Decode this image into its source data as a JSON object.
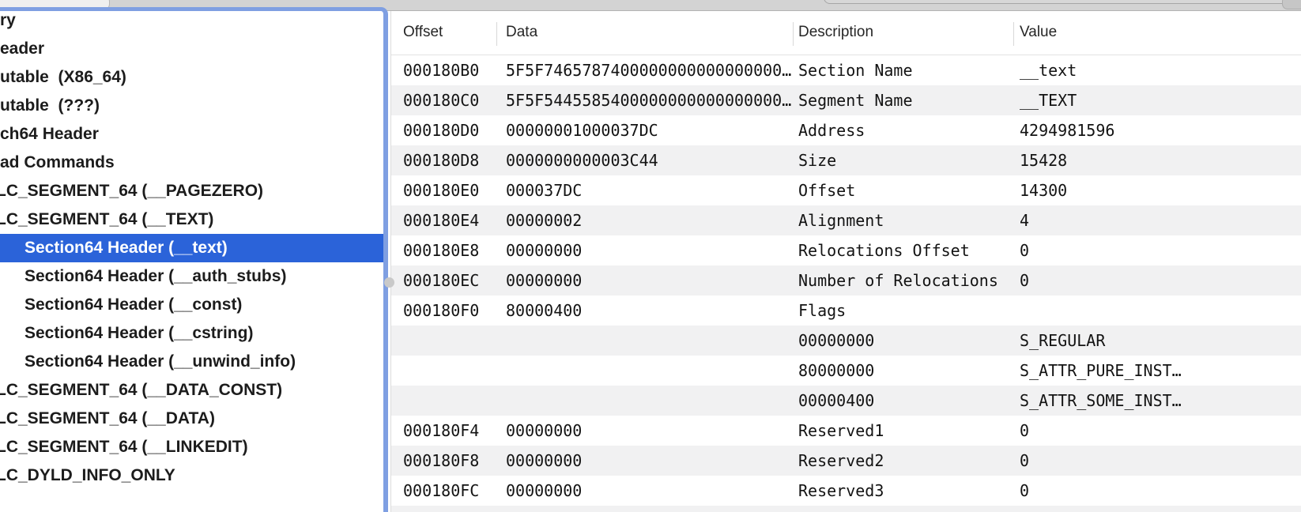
{
  "colors": {
    "selection_blue": "#2b63d9",
    "focus_ring_blue": "#7f9fe2",
    "row_stripe_gray": "#f1f1f2"
  },
  "sidebar": {
    "items": [
      {
        "label": "ry",
        "indent": 0,
        "selected": false,
        "clipped": false
      },
      {
        "label": "eader",
        "indent": 0,
        "selected": false,
        "clipped": false
      },
      {
        "label": "utable  (X86_64)",
        "indent": 0,
        "selected": false,
        "clipped": false
      },
      {
        "label": "utable  (???)",
        "indent": 0,
        "selected": false,
        "clipped": false
      },
      {
        "label": "ch64 Header",
        "indent": 0,
        "selected": false,
        "clipped": false
      },
      {
        "label": "ad Commands",
        "indent": 0,
        "selected": false,
        "clipped": false
      },
      {
        "label": "LC_SEGMENT_64 (__PAGEZERO)",
        "indent": 0,
        "selected": false,
        "clipped": true
      },
      {
        "label": "LC_SEGMENT_64 (__TEXT)",
        "indent": 0,
        "selected": false,
        "clipped": true
      },
      {
        "label": "Section64 Header (__text)",
        "indent": 1,
        "selected": true,
        "clipped": false
      },
      {
        "label": "Section64 Header (__auth_stubs)",
        "indent": 1,
        "selected": false,
        "clipped": false
      },
      {
        "label": "Section64 Header (__const)",
        "indent": 1,
        "selected": false,
        "clipped": false
      },
      {
        "label": "Section64 Header (__cstring)",
        "indent": 1,
        "selected": false,
        "clipped": false
      },
      {
        "label": "Section64 Header (__unwind_info)",
        "indent": 1,
        "selected": false,
        "clipped": false
      },
      {
        "label": "LC_SEGMENT_64 (__DATA_CONST)",
        "indent": 0,
        "selected": false,
        "clipped": true
      },
      {
        "label": "LC_SEGMENT_64 (__DATA)",
        "indent": 0,
        "selected": false,
        "clipped": true
      },
      {
        "label": "LC_SEGMENT_64 (__LINKEDIT)",
        "indent": 0,
        "selected": false,
        "clipped": true
      },
      {
        "label": "LC_DYLD_INFO_ONLY",
        "indent": 0,
        "selected": false,
        "clipped": true
      }
    ]
  },
  "table": {
    "columns": [
      "Offset",
      "Data",
      "Description",
      "Value"
    ],
    "rows": [
      {
        "offset": "000180B0",
        "data": "5F5F7465787400000000000000000…",
        "description": "Section Name",
        "value": "__text"
      },
      {
        "offset": "000180C0",
        "data": "5F5F5445585400000000000000000…",
        "description": "Segment Name",
        "value": "__TEXT"
      },
      {
        "offset": "000180D0",
        "data": "00000001000037DC",
        "description": "Address",
        "value": "4294981596"
      },
      {
        "offset": "000180D8",
        "data": "0000000000003C44",
        "description": "Size",
        "value": "15428"
      },
      {
        "offset": "000180E0",
        "data": "000037DC",
        "description": "Offset",
        "value": "14300"
      },
      {
        "offset": "000180E4",
        "data": "00000002",
        "description": "Alignment",
        "value": "4"
      },
      {
        "offset": "000180E8",
        "data": "00000000",
        "description": "Relocations Offset",
        "value": "0"
      },
      {
        "offset": "000180EC",
        "data": "00000000",
        "description": "Number of Relocations",
        "value": "0"
      },
      {
        "offset": "000180F0",
        "data": "80000400",
        "description": "Flags",
        "value": ""
      },
      {
        "offset": "",
        "data": "",
        "description": "00000000",
        "value": "S_REGULAR"
      },
      {
        "offset": "",
        "data": "",
        "description": "80000000",
        "value": "S_ATTR_PURE_INST…"
      },
      {
        "offset": "",
        "data": "",
        "description": "00000400",
        "value": "S_ATTR_SOME_INST…"
      },
      {
        "offset": "000180F4",
        "data": "00000000",
        "description": "Reserved1",
        "value": "0"
      },
      {
        "offset": "000180F8",
        "data": "00000000",
        "description": "Reserved2",
        "value": "0"
      },
      {
        "offset": "000180FC",
        "data": "00000000",
        "description": "Reserved3",
        "value": "0"
      }
    ]
  }
}
